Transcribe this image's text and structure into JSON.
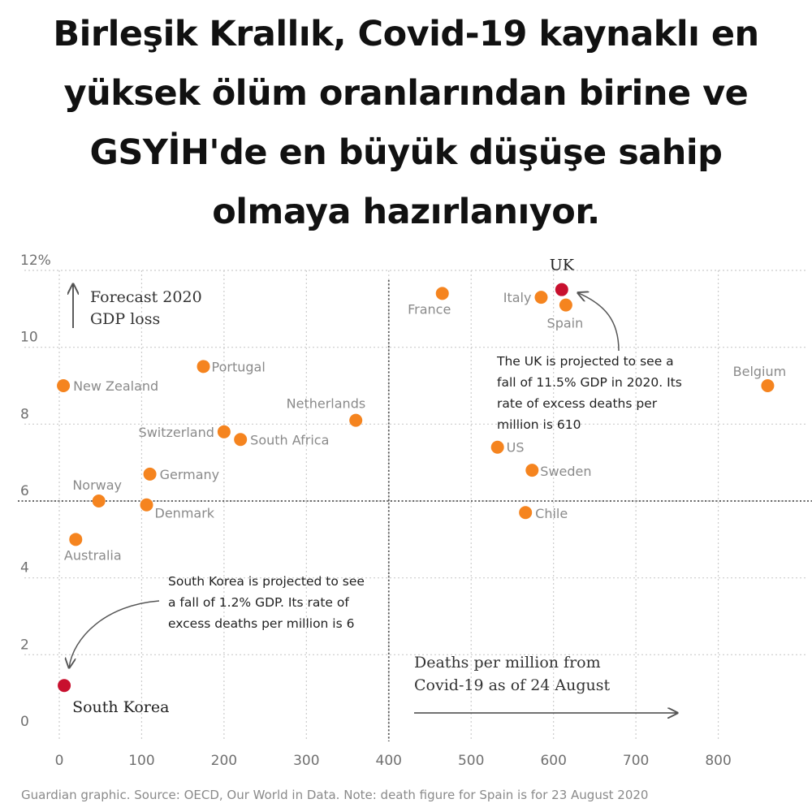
{
  "headline": "Birleşik Krallık, Covid-19 kaynaklı en yüksek ölüm oranlarından birine ve GSYİH'de en büyük düşüşe sahip olmaya hazırlanıyor.",
  "colors": {
    "point": "#f5841f",
    "highlight": "#c8102e",
    "grid": "#cccccc",
    "axis_text": "#707070",
    "label_text": "#8a8a8a",
    "annotation_text": "#222222"
  },
  "chart_data": {
    "type": "scatter",
    "xlim": [
      0,
      900
    ],
    "ylim": [
      0,
      12
    ],
    "x_ticks": [
      0,
      100,
      200,
      300,
      400,
      500,
      600,
      700,
      800
    ],
    "x_tick_labels": [
      "0",
      "100",
      "200",
      "300",
      "400",
      "500",
      "600",
      "700",
      "800"
    ],
    "y_ticks": [
      0,
      2,
      4,
      6,
      8,
      10,
      12
    ],
    "y_tick_labels": [
      "0",
      "2",
      "4",
      "6",
      "8",
      "10",
      "12%"
    ],
    "grid": true,
    "reference_lines": {
      "x": 400,
      "y": 6
    },
    "ylabel": "Forecast 2020 GDP loss",
    "xlabel": "Deaths per million from Covid-19 as of 24 August",
    "points": [
      {
        "label": "South Korea",
        "x": 6,
        "y": 1.2,
        "highlight": true
      },
      {
        "label": "UK",
        "x": 610,
        "y": 11.5,
        "highlight": true
      },
      {
        "label": "New Zealand",
        "x": 5,
        "y": 9.0
      },
      {
        "label": "Portugal",
        "x": 175,
        "y": 9.5
      },
      {
        "label": "Netherlands",
        "x": 360,
        "y": 8.1
      },
      {
        "label": "Switzerland",
        "x": 200,
        "y": 7.8
      },
      {
        "label": "South Africa",
        "x": 220,
        "y": 7.6
      },
      {
        "label": "Germany",
        "x": 110,
        "y": 6.7
      },
      {
        "label": "Norway",
        "x": 48,
        "y": 6.0
      },
      {
        "label": "Denmark",
        "x": 106,
        "y": 5.9
      },
      {
        "label": "Australia",
        "x": 20,
        "y": 5.0
      },
      {
        "label": "France",
        "x": 465,
        "y": 11.4
      },
      {
        "label": "Italy",
        "x": 585,
        "y": 11.3
      },
      {
        "label": "Spain",
        "x": 615,
        "y": 11.1
      },
      {
        "label": "Belgium",
        "x": 860,
        "y": 9.0
      },
      {
        "label": "US",
        "x": 532,
        "y": 7.4
      },
      {
        "label": "Sweden",
        "x": 574,
        "y": 6.8
      },
      {
        "label": "Chile",
        "x": 566,
        "y": 5.7
      }
    ],
    "annotations": [
      {
        "target": "UK",
        "lines": [
          "The UK is projected to see a",
          "fall of 11.5% GDP in 2020. Its",
          "rate of excess deaths per",
          "million is 610"
        ]
      },
      {
        "target": "South Korea",
        "lines": [
          "South Korea is projected to see",
          "a fall of 1.2% GDP. Its rate of",
          "excess deaths per million is 6"
        ]
      }
    ]
  },
  "footer": "Guardian graphic. Source: OECD, Our World in Data. Note: death figure for Spain is for 23 August 2020"
}
